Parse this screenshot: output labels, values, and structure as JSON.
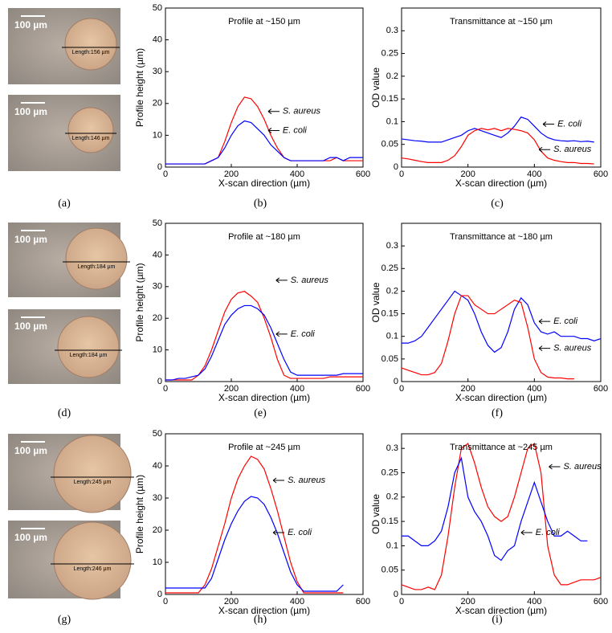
{
  "image_panels": [
    {
      "caption": "(a)",
      "images": [
        {
          "scale": "100 µm",
          "length": "Length:156 µm"
        },
        {
          "scale": "100 µm",
          "length": "Length:146 µm"
        }
      ]
    },
    {
      "caption": "(d)",
      "images": [
        {
          "scale": "100 µm",
          "length": "Length:184 µm"
        },
        {
          "scale": "100 µm",
          "length": "Length:184 µm"
        }
      ]
    },
    {
      "caption": "(g)",
      "images": [
        {
          "scale": "100 µm",
          "length": "Length:245 µm"
        },
        {
          "scale": "100 µm",
          "length": "Length:246 µm"
        }
      ]
    }
  ],
  "chart_data": [
    {
      "type": "line",
      "title": "Profile at ~150 µm",
      "caption": "(b)",
      "x_label": "X-scan direction (µm)",
      "y_label": "Profile height (µm)",
      "x": [
        0,
        20,
        40,
        60,
        80,
        100,
        120,
        140,
        160,
        180,
        200,
        220,
        240,
        260,
        280,
        300,
        320,
        340,
        360,
        380,
        400,
        420,
        440,
        460,
        480,
        500,
        520,
        540,
        560,
        580,
        600
      ],
      "series": [
        {
          "name": "S. aureus",
          "color": "#ff0000",
          "values": [
            1,
            1,
            1,
            1,
            1,
            1,
            1,
            2,
            3,
            8,
            14,
            19,
            22,
            21.5,
            19,
            15,
            10,
            6,
            3,
            2,
            2,
            2,
            2,
            2,
            2,
            2,
            3,
            2,
            2,
            2,
            2
          ]
        },
        {
          "name": "E. coli",
          "color": "#0000ff",
          "values": [
            1,
            1,
            1,
            1,
            1,
            1,
            1,
            2,
            3,
            6,
            10,
            13,
            14.5,
            14,
            12,
            10,
            7,
            5,
            3,
            2,
            2,
            2,
            2,
            2,
            2,
            3,
            3,
            2,
            3,
            3,
            3
          ]
        }
      ],
      "xlim": [
        0,
        600
      ],
      "xticks": [
        0,
        200,
        400,
        600
      ],
      "ylim": [
        0,
        50
      ],
      "yticks": [
        0,
        10,
        20,
        30,
        40,
        50
      ]
    },
    {
      "type": "line",
      "title": "Transmittance at ~150 µm",
      "caption": "(c)",
      "x_label": "X-scan direction (µm)",
      "y_label": "OD value",
      "x": [
        0,
        20,
        40,
        60,
        80,
        100,
        120,
        140,
        160,
        180,
        200,
        220,
        240,
        260,
        280,
        300,
        320,
        340,
        360,
        380,
        400,
        420,
        440,
        460,
        480,
        500,
        520,
        540,
        560,
        580
      ],
      "series": [
        {
          "name": "E. coli",
          "color": "#0000ff",
          "values": [
            0.062,
            0.06,
            0.058,
            0.057,
            0.055,
            0.055,
            0.055,
            0.06,
            0.065,
            0.07,
            0.08,
            0.085,
            0.08,
            0.075,
            0.07,
            0.065,
            0.075,
            0.09,
            0.11,
            0.105,
            0.09,
            0.075,
            0.065,
            0.06,
            0.058,
            0.057,
            0.058,
            0.056,
            0.057,
            0.055
          ]
        },
        {
          "name": "S. aureus",
          "color": "#ff0000",
          "values": [
            0.02,
            0.018,
            0.015,
            0.012,
            0.01,
            0.01,
            0.01,
            0.015,
            0.025,
            0.045,
            0.07,
            0.08,
            0.085,
            0.082,
            0.085,
            0.08,
            0.085,
            0.083,
            0.08,
            0.075,
            0.06,
            0.035,
            0.02,
            0.015,
            0.012,
            0.01,
            0.01,
            0.008,
            0.008,
            0.007
          ]
        }
      ],
      "xlim": [
        0,
        600
      ],
      "xticks": [
        0,
        200,
        400,
        600
      ],
      "ylim": [
        0,
        0.35
      ],
      "yticks": [
        0,
        0.05,
        0.1,
        0.15,
        0.2,
        0.25,
        0.3
      ]
    },
    {
      "type": "line",
      "title": "Profile at ~180 µm",
      "caption": "(e)",
      "x_label": "X-scan direction (µm)",
      "y_label": "Profile height (µm)",
      "x": [
        0,
        20,
        40,
        60,
        80,
        100,
        120,
        140,
        160,
        180,
        200,
        220,
        240,
        260,
        280,
        300,
        320,
        340,
        360,
        380,
        400,
        420,
        440,
        460,
        480,
        500,
        520,
        540,
        560,
        580,
        600
      ],
      "series": [
        {
          "name": "S. aureus",
          "color": "#ff0000",
          "values": [
            0.5,
            0.5,
            0.5,
            0.5,
            0.5,
            2,
            5,
            10,
            16,
            22,
            26,
            28,
            28.5,
            27,
            25,
            20,
            14,
            7,
            2,
            1,
            1,
            1,
            1,
            1,
            1,
            1.5,
            1.5,
            1.5,
            1.5,
            1.5,
            1.5
          ]
        },
        {
          "name": "E. coli",
          "color": "#0000ff",
          "values": [
            0.5,
            0.5,
            1,
            1,
            1.5,
            2,
            4,
            8,
            13,
            18,
            21,
            23,
            24,
            24,
            23,
            21,
            17,
            12,
            7,
            3,
            2,
            2,
            2,
            2,
            2,
            2,
            2,
            2.5,
            2.5,
            2.5,
            2.5
          ]
        }
      ],
      "xlim": [
        0,
        600
      ],
      "xticks": [
        0,
        200,
        400,
        600
      ],
      "ylim": [
        0,
        50
      ],
      "yticks": [
        0,
        10,
        20,
        30,
        40,
        50
      ]
    },
    {
      "type": "line",
      "title": "Transmittance at ~180 µm",
      "caption": "(f)",
      "x_label": "X-scan direction (µm)",
      "y_label": "OD value",
      "x": [
        0,
        20,
        40,
        60,
        80,
        100,
        120,
        140,
        160,
        180,
        200,
        220,
        240,
        260,
        280,
        300,
        320,
        340,
        360,
        380,
        400,
        420,
        440,
        460,
        480,
        500,
        520,
        540,
        560,
        580,
        600
      ],
      "series": [
        {
          "name": "E. coli",
          "color": "#0000ff",
          "values": [
            0.085,
            0.085,
            0.09,
            0.1,
            0.12,
            0.14,
            0.16,
            0.18,
            0.2,
            0.19,
            0.18,
            0.15,
            0.11,
            0.08,
            0.065,
            0.075,
            0.11,
            0.16,
            0.185,
            0.17,
            0.13,
            0.11,
            0.105,
            0.11,
            0.1,
            0.1,
            0.1,
            0.095,
            0.095,
            0.09,
            0.095
          ]
        },
        {
          "name": "S. aureus",
          "color": "#ff0000",
          "values": [
            0.03,
            0.025,
            0.02,
            0.015,
            0.015,
            0.02,
            0.04,
            0.09,
            0.15,
            0.19,
            0.19,
            0.17,
            0.16,
            0.15,
            0.15,
            0.16,
            0.17,
            0.18,
            0.175,
            0.12,
            0.05,
            0.02,
            0.01,
            0.008,
            0.008,
            0.006,
            0.006,
            null,
            null,
            null,
            null
          ]
        }
      ],
      "xlim": [
        0,
        600
      ],
      "xticks": [
        0,
        200,
        400,
        600
      ],
      "ylim": [
        0,
        0.35
      ],
      "yticks": [
        0,
        0.05,
        0.1,
        0.15,
        0.2,
        0.25,
        0.3
      ]
    },
    {
      "type": "line",
      "title": "Profile at ~245 µm",
      "caption": "(h)",
      "x_label": "X-scan direction (µm)",
      "y_label": "Profile height (µm)",
      "x": [
        0,
        20,
        40,
        60,
        80,
        100,
        120,
        140,
        160,
        180,
        200,
        220,
        240,
        260,
        280,
        300,
        320,
        340,
        360,
        380,
        400,
        420,
        440,
        460,
        480,
        500,
        520,
        540,
        560,
        580,
        600
      ],
      "series": [
        {
          "name": "S. aureus",
          "color": "#ff0000",
          "values": [
            0.5,
            0.5,
            0.5,
            0.5,
            0.5,
            0.5,
            3,
            8,
            15,
            22,
            30,
            36,
            40,
            43,
            42,
            39,
            33,
            26,
            18,
            10,
            4,
            0.5,
            0.5,
            0.5,
            0.5,
            0.5,
            0.5,
            0.5,
            null,
            null,
            null
          ]
        },
        {
          "name": "E. coli",
          "color": "#0000ff",
          "values": [
            2,
            2,
            2,
            2,
            2,
            2,
            2,
            5,
            11,
            17,
            22,
            26,
            29,
            30.5,
            30,
            28,
            24,
            19,
            13,
            7,
            3,
            1,
            1,
            1,
            1,
            1,
            1,
            3,
            null,
            null,
            null
          ]
        }
      ],
      "xlim": [
        0,
        600
      ],
      "xticks": [
        0,
        200,
        400,
        600
      ],
      "ylim": [
        0,
        50
      ],
      "yticks": [
        0,
        10,
        20,
        30,
        40,
        50
      ]
    },
    {
      "type": "line",
      "title": "Transmittance at ~245 µm",
      "caption": "(i)",
      "x_label": "X-scan direction (µm)",
      "y_label": "OD value",
      "x": [
        0,
        20,
        40,
        60,
        80,
        100,
        120,
        140,
        160,
        180,
        200,
        220,
        240,
        260,
        280,
        300,
        320,
        340,
        360,
        380,
        400,
        420,
        440,
        460,
        480,
        500,
        520,
        540,
        560,
        580,
        600
      ],
      "series": [
        {
          "name": "S. aureus",
          "color": "#ff0000",
          "values": [
            0.02,
            0.015,
            0.01,
            0.01,
            0.015,
            0.01,
            0.04,
            0.12,
            0.22,
            0.3,
            0.31,
            0.27,
            0.22,
            0.18,
            0.16,
            0.15,
            0.16,
            0.2,
            0.25,
            0.3,
            0.31,
            0.25,
            0.1,
            0.04,
            0.02,
            0.02,
            0.025,
            0.03,
            0.03,
            0.03,
            0.035
          ]
        },
        {
          "name": "E. coli",
          "color": "#0000ff",
          "values": [
            0.12,
            0.12,
            0.11,
            0.1,
            0.1,
            0.11,
            0.13,
            0.18,
            0.25,
            0.28,
            0.2,
            0.17,
            0.15,
            0.12,
            0.08,
            0.07,
            0.09,
            0.1,
            0.15,
            0.19,
            0.23,
            0.19,
            0.15,
            0.12,
            0.12,
            0.13,
            0.12,
            0.11,
            0.11,
            null,
            null
          ]
        }
      ],
      "xlim": [
        0,
        600
      ],
      "xticks": [
        0,
        200,
        400,
        600
      ],
      "ylim": [
        0,
        0.33
      ],
      "yticks": [
        0,
        0.05,
        0.1,
        0.15,
        0.2,
        0.25,
        0.3
      ]
    }
  ]
}
